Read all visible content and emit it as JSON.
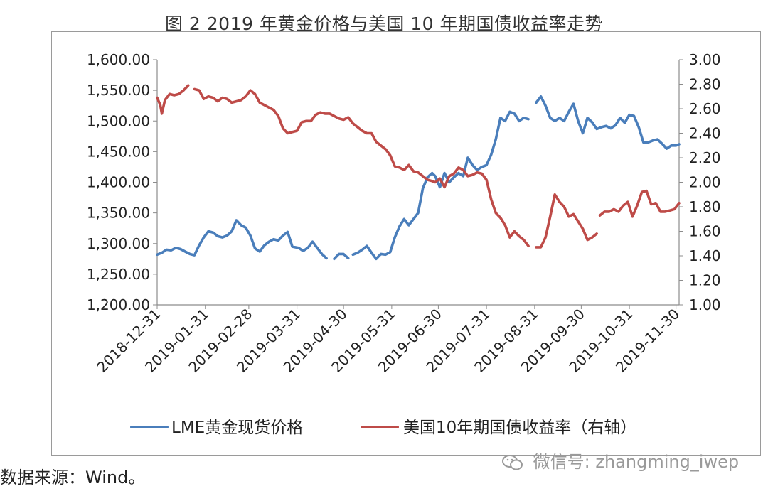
{
  "figure": {
    "title": "图 2  2019 年黄金价格与美国 10 年期国债收益率走势",
    "source": "数据来源：Wind。",
    "watermark": "微信号: zhangming_iwep"
  },
  "chart_data": {
    "type": "line",
    "title": "",
    "x_tick_labels": [
      "2018-12-31",
      "2019-01-31",
      "2019-02-28",
      "2019-03-31",
      "2019-04-30",
      "2019-05-31",
      "2019-06-30",
      "2019-07-31",
      "2019-08-31",
      "2019-09-30",
      "2019-10-31",
      "2019-11-30"
    ],
    "left_axis": {
      "ylim": [
        1200,
        1600
      ],
      "ticks": [
        "1,200.00",
        "1,250.00",
        "1,300.00",
        "1,350.00",
        "1,400.00",
        "1,450.00",
        "1,500.00",
        "1,550.00",
        "1,600.00"
      ]
    },
    "right_axis": {
      "ylim": [
        1.0,
        3.0
      ],
      "ticks": [
        "1.00",
        "1.20",
        "1.40",
        "1.60",
        "1.80",
        "2.00",
        "2.20",
        "2.40",
        "2.60",
        "2.80",
        "3.00"
      ]
    },
    "grid": false,
    "legend_position": "bottom",
    "series": [
      {
        "name": "LME黄金现货价格",
        "axis": "left",
        "color": "#4a7ebb",
        "points": [
          [
            "2018-12-31",
            1282
          ],
          [
            "2019-01-03",
            1285
          ],
          [
            "2019-01-06",
            1290
          ],
          [
            "2019-01-09",
            1289
          ],
          [
            "2019-01-12",
            1293
          ],
          [
            "2019-01-15",
            1291
          ],
          [
            "2019-01-18",
            1287
          ],
          [
            "2019-01-21",
            1283
          ],
          [
            "2019-01-24",
            1281
          ],
          [
            "2019-01-27",
            1297
          ],
          [
            "2019-01-30",
            1310
          ],
          [
            "2019-02-02",
            1320
          ],
          [
            "2019-02-05",
            1318
          ],
          [
            "2019-02-08",
            1312
          ],
          [
            "2019-02-11",
            1310
          ],
          [
            "2019-02-14",
            1313
          ],
          [
            "2019-02-17",
            1320
          ],
          [
            "2019-02-20",
            1338
          ],
          [
            "2019-02-23",
            1330
          ],
          [
            "2019-02-26",
            1326
          ],
          [
            "2019-03-01",
            1313
          ],
          [
            "2019-03-04",
            1292
          ],
          [
            "2019-03-07",
            1287
          ],
          [
            "2019-03-10",
            1297
          ],
          [
            "2019-03-13",
            1303
          ],
          [
            "2019-03-16",
            1307
          ],
          [
            "2019-03-19",
            1305
          ],
          [
            "2019-03-22",
            1313
          ],
          [
            "2019-03-25",
            1319
          ],
          [
            "2019-03-28",
            1295
          ],
          [
            "2019-04-01",
            1293
          ],
          [
            "2019-04-04",
            1288
          ],
          [
            "2019-04-07",
            1293
          ],
          [
            "2019-04-10",
            1303
          ],
          [
            "2019-04-13",
            1293
          ],
          [
            "2019-04-16",
            1283
          ],
          [
            "2019-04-19",
            1276
          ],
          null,
          [
            "2019-04-24",
            1275
          ],
          [
            "2019-04-27",
            1283
          ],
          [
            "2019-04-30",
            1283
          ],
          [
            "2019-05-03",
            1276
          ],
          null,
          [
            "2019-05-06",
            1282
          ],
          [
            "2019-05-09",
            1285
          ],
          [
            "2019-05-12",
            1290
          ],
          [
            "2019-05-15",
            1296
          ],
          [
            "2019-05-18",
            1285
          ],
          [
            "2019-05-21",
            1275
          ],
          [
            "2019-05-24",
            1283
          ],
          [
            "2019-05-27",
            1282
          ],
          [
            "2019-05-30",
            1286
          ],
          [
            "2019-06-02",
            1310
          ],
          [
            "2019-06-05",
            1328
          ],
          [
            "2019-06-08",
            1340
          ],
          [
            "2019-06-11",
            1330
          ],
          [
            "2019-06-14",
            1340
          ],
          [
            "2019-06-17",
            1350
          ],
          [
            "2019-06-20",
            1390
          ],
          [
            "2019-06-23",
            1408
          ],
          [
            "2019-06-26",
            1415
          ],
          [
            "2019-06-28",
            1410
          ],
          [
            "2019-07-01",
            1392
          ],
          [
            "2019-07-04",
            1415
          ],
          [
            "2019-07-07",
            1400
          ],
          [
            "2019-07-10",
            1408
          ],
          [
            "2019-07-13",
            1415
          ],
          [
            "2019-07-16",
            1410
          ],
          [
            "2019-07-19",
            1440
          ],
          [
            "2019-07-22",
            1428
          ],
          [
            "2019-07-25",
            1420
          ],
          [
            "2019-07-28",
            1425
          ],
          [
            "2019-07-31",
            1428
          ],
          [
            "2019-08-03",
            1445
          ],
          [
            "2019-08-06",
            1470
          ],
          [
            "2019-08-09",
            1505
          ],
          [
            "2019-08-12",
            1500
          ],
          [
            "2019-08-15",
            1515
          ],
          [
            "2019-08-18",
            1512
          ],
          [
            "2019-08-21",
            1500
          ],
          [
            "2019-08-24",
            1505
          ],
          [
            "2019-08-27",
            1503
          ],
          null,
          [
            "2019-09-01",
            1530
          ],
          [
            "2019-09-04",
            1540
          ],
          [
            "2019-09-07",
            1525
          ],
          [
            "2019-09-10",
            1505
          ],
          [
            "2019-09-13",
            1500
          ],
          [
            "2019-09-16",
            1505
          ],
          [
            "2019-09-19",
            1500
          ],
          [
            "2019-09-22",
            1515
          ],
          [
            "2019-09-25",
            1528
          ],
          [
            "2019-09-28",
            1500
          ],
          [
            "2019-10-01",
            1480
          ],
          [
            "2019-10-04",
            1505
          ],
          [
            "2019-10-07",
            1498
          ],
          [
            "2019-10-10",
            1487
          ],
          [
            "2019-10-13",
            1490
          ],
          [
            "2019-10-16",
            1492
          ],
          [
            "2019-10-19",
            1488
          ],
          [
            "2019-10-22",
            1493
          ],
          [
            "2019-10-25",
            1505
          ],
          [
            "2019-10-28",
            1497
          ],
          [
            "2019-10-31",
            1510
          ],
          [
            "2019-11-03",
            1508
          ],
          [
            "2019-11-06",
            1490
          ],
          [
            "2019-11-09",
            1465
          ],
          [
            "2019-11-12",
            1465
          ],
          [
            "2019-11-15",
            1468
          ],
          [
            "2019-11-18",
            1470
          ],
          [
            "2019-11-21",
            1463
          ],
          [
            "2019-11-24",
            1455
          ],
          [
            "2019-11-27",
            1460
          ],
          [
            "2019-11-30",
            1460
          ],
          [
            "2019-12-02",
            1462
          ]
        ]
      },
      {
        "name": "美国10年期国债收益率（右轴）",
        "axis": "right",
        "color": "#be4b48",
        "points": [
          [
            "2018-12-31",
            2.69
          ],
          [
            "2019-01-02",
            2.63
          ],
          [
            "2019-01-03",
            2.56
          ],
          [
            "2019-01-05",
            2.67
          ],
          [
            "2019-01-08",
            2.72
          ],
          [
            "2019-01-11",
            2.71
          ],
          [
            "2019-01-14",
            2.72
          ],
          [
            "2019-01-17",
            2.75
          ],
          [
            "2019-01-20",
            2.79
          ],
          null,
          [
            "2019-01-24",
            2.76
          ],
          [
            "2019-01-27",
            2.75
          ],
          [
            "2019-01-30",
            2.68
          ],
          [
            "2019-02-02",
            2.7
          ],
          [
            "2019-02-05",
            2.69
          ],
          [
            "2019-02-08",
            2.66
          ],
          [
            "2019-02-11",
            2.69
          ],
          [
            "2019-02-14",
            2.68
          ],
          [
            "2019-02-17",
            2.65
          ],
          [
            "2019-02-20",
            2.66
          ],
          [
            "2019-02-23",
            2.67
          ],
          [
            "2019-02-26",
            2.7
          ],
          [
            "2019-03-01",
            2.75
          ],
          [
            "2019-03-04",
            2.72
          ],
          [
            "2019-03-07",
            2.65
          ],
          [
            "2019-03-10",
            2.63
          ],
          [
            "2019-03-13",
            2.61
          ],
          [
            "2019-03-16",
            2.59
          ],
          [
            "2019-03-19",
            2.54
          ],
          [
            "2019-03-22",
            2.44
          ],
          [
            "2019-03-25",
            2.4
          ],
          [
            "2019-03-28",
            2.41
          ],
          [
            "2019-03-31",
            2.42
          ],
          [
            "2019-04-03",
            2.49
          ],
          [
            "2019-04-06",
            2.5
          ],
          [
            "2019-04-09",
            2.5
          ],
          [
            "2019-04-12",
            2.55
          ],
          [
            "2019-04-15",
            2.57
          ],
          [
            "2019-04-18",
            2.56
          ],
          [
            "2019-04-21",
            2.56
          ],
          [
            "2019-04-24",
            2.54
          ],
          [
            "2019-04-27",
            2.52
          ],
          [
            "2019-04-30",
            2.51
          ],
          [
            "2019-05-03",
            2.53
          ],
          [
            "2019-05-06",
            2.48
          ],
          [
            "2019-05-09",
            2.45
          ],
          [
            "2019-05-12",
            2.42
          ],
          [
            "2019-05-15",
            2.4
          ],
          [
            "2019-05-18",
            2.4
          ],
          [
            "2019-05-21",
            2.33
          ],
          [
            "2019-05-24",
            2.3
          ],
          [
            "2019-05-27",
            2.27
          ],
          [
            "2019-05-30",
            2.22
          ],
          [
            "2019-06-02",
            2.13
          ],
          [
            "2019-06-05",
            2.12
          ],
          [
            "2019-06-08",
            2.1
          ],
          [
            "2019-06-11",
            2.14
          ],
          [
            "2019-06-14",
            2.09
          ],
          [
            "2019-06-17",
            2.08
          ],
          [
            "2019-06-20",
            2.05
          ],
          [
            "2019-06-23",
            2.02
          ],
          [
            "2019-06-26",
            2.01
          ],
          [
            "2019-06-28",
            2.0
          ],
          [
            "2019-07-01",
            2.03
          ],
          [
            "2019-07-04",
            1.96
          ],
          [
            "2019-07-07",
            2.05
          ],
          [
            "2019-07-10",
            2.07
          ],
          [
            "2019-07-13",
            2.12
          ],
          [
            "2019-07-16",
            2.1
          ],
          [
            "2019-07-19",
            2.05
          ],
          [
            "2019-07-22",
            2.06
          ],
          [
            "2019-07-25",
            2.08
          ],
          [
            "2019-07-28",
            2.07
          ],
          [
            "2019-07-31",
            2.02
          ],
          [
            "2019-08-03",
            1.86
          ],
          [
            "2019-08-06",
            1.75
          ],
          [
            "2019-08-09",
            1.71
          ],
          [
            "2019-08-12",
            1.65
          ],
          [
            "2019-08-15",
            1.55
          ],
          [
            "2019-08-18",
            1.6
          ],
          [
            "2019-08-21",
            1.56
          ],
          [
            "2019-08-24",
            1.53
          ],
          [
            "2019-08-27",
            1.48
          ],
          null,
          [
            "2019-09-01",
            1.47
          ],
          [
            "2019-09-04",
            1.47
          ],
          [
            "2019-09-07",
            1.55
          ],
          [
            "2019-09-10",
            1.72
          ],
          [
            "2019-09-13",
            1.9
          ],
          [
            "2019-09-16",
            1.84
          ],
          [
            "2019-09-19",
            1.8
          ],
          [
            "2019-09-22",
            1.72
          ],
          [
            "2019-09-25",
            1.74
          ],
          [
            "2019-09-28",
            1.68
          ],
          [
            "2019-10-01",
            1.62
          ],
          [
            "2019-10-04",
            1.53
          ],
          [
            "2019-10-07",
            1.55
          ],
          [
            "2019-10-10",
            1.58
          ],
          null,
          [
            "2019-10-12",
            1.73
          ],
          [
            "2019-10-15",
            1.76
          ],
          [
            "2019-10-18",
            1.76
          ],
          [
            "2019-10-21",
            1.78
          ],
          [
            "2019-10-24",
            1.76
          ],
          [
            "2019-10-27",
            1.81
          ],
          [
            "2019-10-30",
            1.84
          ],
          [
            "2019-11-02",
            1.72
          ],
          [
            "2019-11-05",
            1.81
          ],
          [
            "2019-11-08",
            1.92
          ],
          [
            "2019-11-11",
            1.93
          ],
          [
            "2019-11-14",
            1.82
          ],
          [
            "2019-11-17",
            1.83
          ],
          [
            "2019-11-20",
            1.76
          ],
          [
            "2019-11-23",
            1.76
          ],
          [
            "2019-11-26",
            1.77
          ],
          [
            "2019-11-29",
            1.78
          ],
          [
            "2019-12-02",
            1.83
          ]
        ]
      }
    ]
  }
}
